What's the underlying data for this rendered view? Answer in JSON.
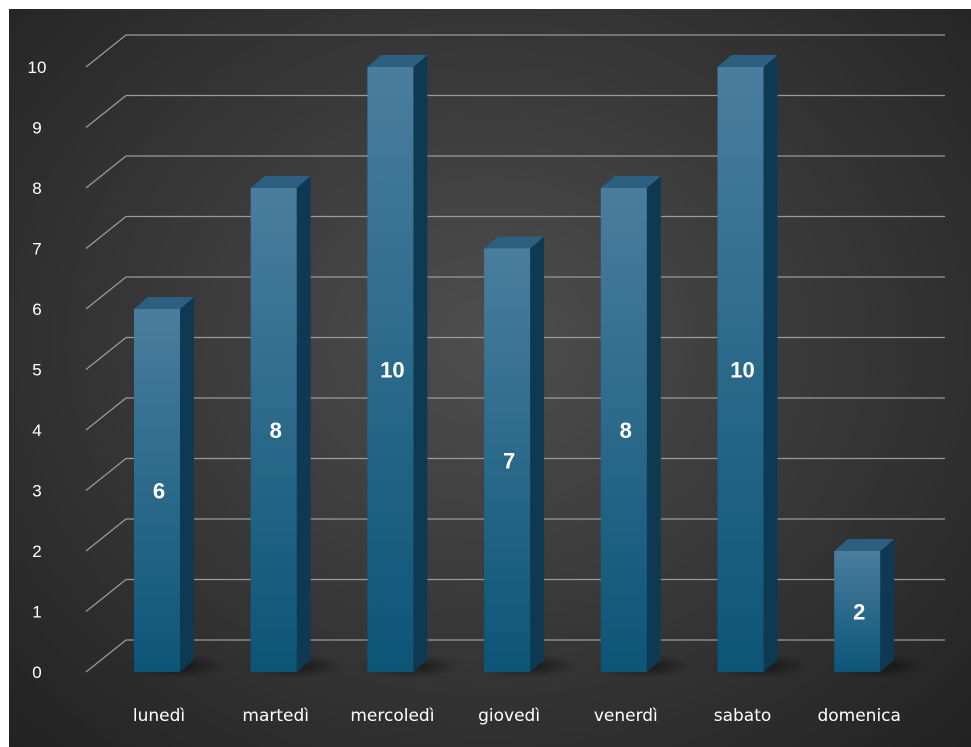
{
  "chart_data": {
    "type": "bar",
    "style": "3d-column",
    "categories": [
      "lunedì",
      "martedì",
      "mercoledì",
      "giovedì",
      "venerdì",
      "sabato",
      "domenica"
    ],
    "series": [
      {
        "values": [
          6,
          8,
          10,
          7,
          8,
          10,
          2
        ]
      }
    ],
    "ylim": [
      0,
      10
    ],
    "yticks": [
      0,
      1,
      2,
      3,
      4,
      5,
      6,
      7,
      8,
      9,
      10
    ],
    "grid": true,
    "legend": "none",
    "data_labels": true,
    "colors": {
      "bar_front_top": "#4a7d9e",
      "bar_front_bottom": "#0c5577",
      "bar_side": "#0d3a52",
      "bar_top": "#2d5f80",
      "grid": "#9a9a9a",
      "text": "#ffffff"
    }
  }
}
